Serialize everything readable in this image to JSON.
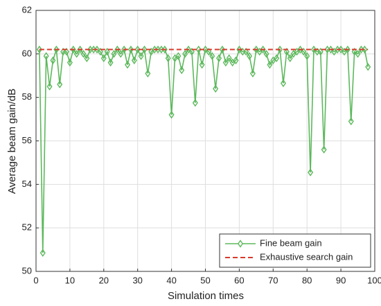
{
  "chart_data": {
    "type": "line",
    "xlabel": "Simulation times",
    "ylabel": "Average beam gain/dB",
    "xlim": [
      0,
      100
    ],
    "xticks": [
      0,
      10,
      20,
      30,
      40,
      50,
      60,
      70,
      80,
      90,
      100
    ],
    "ylim": [
      50,
      62
    ],
    "yticks": [
      50,
      52,
      54,
      56,
      58,
      60,
      62
    ],
    "grid": true,
    "legend": "lower right",
    "series": [
      {
        "name": "Fine beam gain",
        "color": "#5cb85c",
        "marker": "diamond",
        "x": [
          1,
          2,
          3,
          4,
          5,
          6,
          7,
          8,
          9,
          10,
          11,
          12,
          13,
          14,
          15,
          16,
          17,
          18,
          19,
          20,
          21,
          22,
          23,
          24,
          25,
          26,
          27,
          28,
          29,
          30,
          31,
          32,
          33,
          34,
          35,
          36,
          37,
          38,
          39,
          40,
          41,
          42,
          43,
          44,
          45,
          46,
          47,
          48,
          49,
          50,
          51,
          52,
          53,
          54,
          55,
          56,
          57,
          58,
          59,
          60,
          61,
          62,
          63,
          64,
          65,
          66,
          67,
          68,
          69,
          70,
          71,
          72,
          73,
          74,
          75,
          76,
          77,
          78,
          79,
          80,
          81,
          82,
          83,
          84,
          85,
          86,
          87,
          88,
          89,
          90,
          91,
          92,
          93,
          94,
          95,
          96,
          97,
          98
        ],
        "values": [
          60.2,
          50.85,
          59.9,
          58.5,
          59.7,
          60.2,
          58.6,
          60.1,
          60.1,
          59.6,
          60.2,
          60.0,
          60.2,
          60.0,
          59.8,
          60.2,
          60.2,
          60.2,
          60.1,
          59.8,
          60.1,
          59.6,
          60.0,
          60.2,
          60.0,
          60.2,
          59.5,
          60.2,
          59.7,
          60.2,
          59.9,
          60.2,
          59.1,
          60.1,
          60.2,
          60.2,
          60.2,
          60.2,
          59.8,
          57.2,
          59.8,
          59.9,
          59.25,
          60.0,
          60.2,
          60.1,
          57.75,
          60.2,
          59.5,
          60.2,
          60.1,
          59.9,
          58.4,
          59.8,
          60.2,
          59.6,
          59.8,
          59.6,
          59.7,
          60.2,
          60.1,
          60.1,
          59.9,
          59.1,
          60.2,
          60.1,
          60.2,
          60.0,
          59.5,
          59.7,
          59.8,
          60.2,
          58.65,
          60.1,
          59.8,
          60.0,
          60.1,
          60.2,
          60.1,
          59.9,
          54.55,
          60.2,
          60.1,
          60.1,
          55.6,
          60.2,
          60.2,
          60.1,
          60.2,
          60.2,
          60.1,
          60.2,
          56.9,
          60.1,
          60.0,
          60.2,
          60.2,
          59.4
        ]
      },
      {
        "name": "Exhaustive search gain",
        "color": "#d9392b",
        "dash": true,
        "x": [
          1,
          98
        ],
        "values": [
          60.2,
          60.2
        ]
      }
    ]
  }
}
